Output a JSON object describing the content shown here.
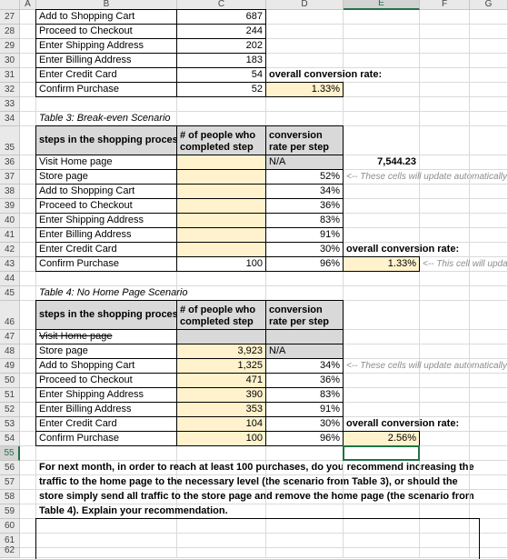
{
  "column_headers": [
    "A",
    "B",
    "C",
    "D",
    "E",
    "F",
    "G"
  ],
  "rows": [
    {
      "number": "27",
      "cells": [
        null,
        "Add to Shopping Cart",
        "687"
      ]
    },
    {
      "number": "28",
      "cells": [
        null,
        "Proceed to Checkout",
        "244"
      ]
    },
    {
      "number": "29",
      "cells": [
        null,
        "Enter Shipping Address",
        "202"
      ]
    },
    {
      "number": "30",
      "cells": [
        null,
        "Enter Billing Address",
        "183"
      ]
    },
    {
      "number": "31",
      "cells": [
        null,
        "Enter Credit Card",
        "54",
        "overall conversion rate:"
      ]
    },
    {
      "number": "32",
      "cells": [
        null,
        "Confirm Purchase",
        "52",
        "1.33%"
      ]
    },
    {
      "number": "33",
      "cells": []
    },
    {
      "number": "34",
      "cells": [
        null,
        "Table 3: Break-even Scenario"
      ]
    },
    {
      "number": "35",
      "cells": [
        null,
        "steps in the shopping process",
        "# of people who completed step",
        "conversion rate per step"
      ]
    },
    {
      "number": "36",
      "cells": [
        null,
        "Visit Home page",
        null,
        "N/A",
        "7,544.23"
      ]
    },
    {
      "number": "37",
      "cells": [
        null,
        "Store page",
        null,
        "52%",
        "<-- These cells will update automatically"
      ]
    },
    {
      "number": "38",
      "cells": [
        null,
        "Add to Shopping Cart",
        null,
        "34%"
      ]
    },
    {
      "number": "39",
      "cells": [
        null,
        "Proceed to Checkout",
        null,
        "36%"
      ]
    },
    {
      "number": "40",
      "cells": [
        null,
        "Enter Shipping Address",
        null,
        "83%"
      ]
    },
    {
      "number": "41",
      "cells": [
        null,
        "Enter Billing Address",
        null,
        "91%"
      ]
    },
    {
      "number": "42",
      "cells": [
        null,
        "Enter Credit Card",
        null,
        "30%",
        "overall conversion rate:"
      ]
    },
    {
      "number": "43",
      "cells": [
        null,
        "Confirm Purchase",
        "100",
        "96%",
        "1.33%",
        "<-- This cell will update automatically"
      ]
    },
    {
      "number": "44",
      "cells": []
    },
    {
      "number": "45",
      "cells": [
        null,
        "Table 4: No Home Page Scenario"
      ]
    },
    {
      "number": "46",
      "cells": [
        null,
        "steps in the shopping process",
        "# of people who completed step",
        "conversion rate per step"
      ]
    },
    {
      "number": "47",
      "cells": [
        null,
        "Visit Home page"
      ]
    },
    {
      "number": "48",
      "cells": [
        null,
        "Store page",
        "3,923",
        "N/A"
      ]
    },
    {
      "number": "49",
      "cells": [
        null,
        "Add to Shopping Cart",
        "1,325",
        "34%",
        "<-- These cells will update automatically"
      ]
    },
    {
      "number": "50",
      "cells": [
        null,
        "Proceed to Checkout",
        "471",
        "36%"
      ]
    },
    {
      "number": "51",
      "cells": [
        null,
        "Enter Shipping Address",
        "390",
        "83%"
      ]
    },
    {
      "number": "52",
      "cells": [
        null,
        "Enter Billing Address",
        "353",
        "91%"
      ]
    },
    {
      "number": "53",
      "cells": [
        null,
        "Enter Credit Card",
        "104",
        "30%",
        "overall conversion rate:"
      ]
    },
    {
      "number": "54",
      "cells": [
        null,
        "Confirm Purchase",
        "100",
        "96%",
        "2.56%"
      ]
    },
    {
      "number": "55",
      "cells": []
    },
    {
      "number": "56",
      "cells": [
        null,
        "For next month, in order to reach at least 100 purchases, do you recommend increasing the"
      ]
    },
    {
      "number": "57",
      "cells": [
        null,
        "traffic to the home page to the necessary level (the scenario from Table 3), or should the"
      ]
    },
    {
      "number": "58",
      "cells": [
        null,
        "store simply send all traffic to the store page and remove the home page (the scenario from"
      ]
    },
    {
      "number": "59",
      "cells": [
        null,
        "Table 4). Explain your recommendation."
      ]
    },
    {
      "number": "60",
      "cells": []
    },
    {
      "number": "61",
      "cells": []
    },
    {
      "number": "62",
      "cells": []
    }
  ]
}
